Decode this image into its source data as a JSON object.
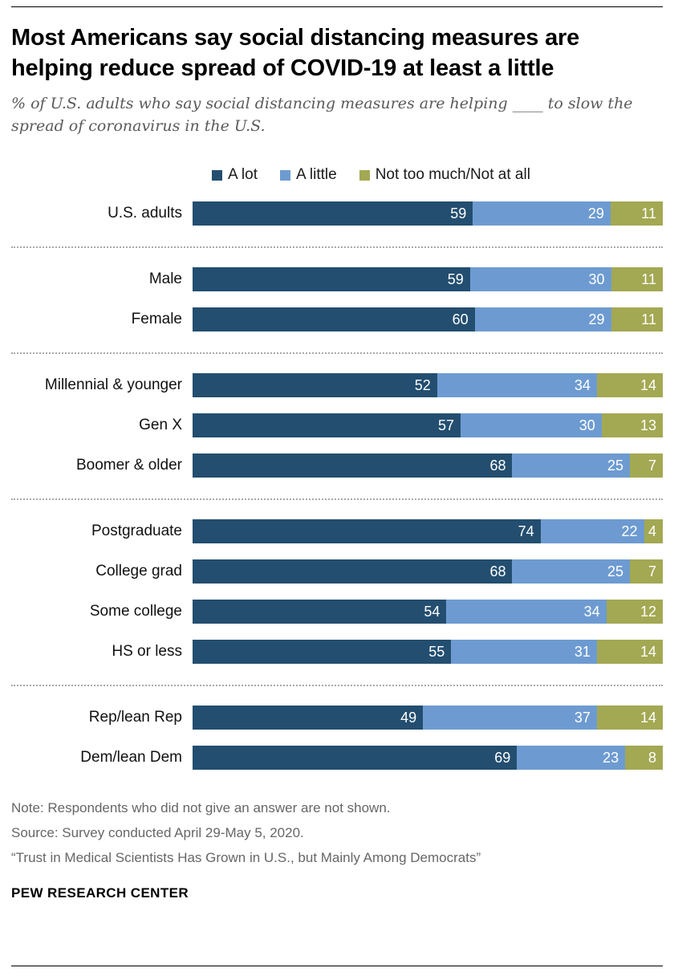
{
  "header": {
    "title": "Most Americans say social distancing measures are helping reduce spread of COVID-19 at least a little",
    "subtitle": "% of U.S. adults who say social distancing measures are helping ____ to slow the spread of coronavirus in the U.S."
  },
  "chart_data": {
    "type": "bar",
    "stacked": true,
    "orientation": "horizontal",
    "value_unit": "percent",
    "xlim": [
      0,
      100
    ],
    "legend_position": "top",
    "legend": [
      {
        "label": "A lot",
        "color": "#234e70"
      },
      {
        "label": "A little",
        "color": "#6d9bd1"
      },
      {
        "label": "Not too much/Not at all",
        "color": "#a3a853"
      }
    ],
    "groups": [
      {
        "rows": [
          {
            "label": "U.S. adults",
            "values": [
              59,
              29,
              11
            ]
          }
        ]
      },
      {
        "rows": [
          {
            "label": "Male",
            "values": [
              59,
              30,
              11
            ]
          },
          {
            "label": "Female",
            "values": [
              60,
              29,
              11
            ]
          }
        ]
      },
      {
        "rows": [
          {
            "label": "Millennial & younger",
            "values": [
              52,
              34,
              14
            ]
          },
          {
            "label": "Gen X",
            "values": [
              57,
              30,
              13
            ]
          },
          {
            "label": "Boomer & older",
            "values": [
              68,
              25,
              7
            ]
          }
        ]
      },
      {
        "rows": [
          {
            "label": "Postgraduate",
            "values": [
              74,
              22,
              4
            ]
          },
          {
            "label": "College grad",
            "values": [
              68,
              25,
              7
            ]
          },
          {
            "label": "Some college",
            "values": [
              54,
              34,
              12
            ]
          },
          {
            "label": "HS or less",
            "values": [
              55,
              31,
              14
            ]
          }
        ]
      },
      {
        "rows": [
          {
            "label": "Rep/lean Rep",
            "values": [
              49,
              37,
              14
            ]
          },
          {
            "label": "Dem/lean Dem",
            "values": [
              69,
              23,
              8
            ]
          }
        ]
      }
    ]
  },
  "footer": {
    "note": "Note: Respondents who did not give an answer are not shown.",
    "source": "Source: Survey conducted April 29-May 5, 2020.",
    "quote": "“Trust in Medical Scientists Has Grown in U.S., but Mainly Among Democrats”",
    "brand": "PEW RESEARCH CENTER"
  }
}
